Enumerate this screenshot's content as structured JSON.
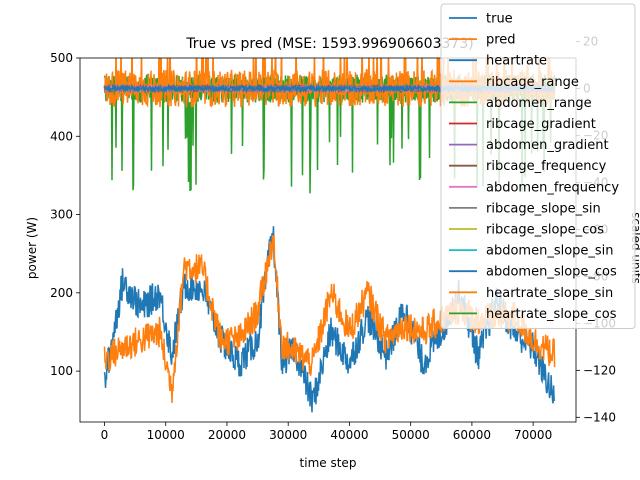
{
  "chart_data": {
    "type": "line",
    "title": "True vs pred (MSE: 1593.996906603373)",
    "xlabel": "time step",
    "ylabel_left": "power (W)",
    "ylabel_right": "scaled units",
    "xlim": [
      -4000,
      77000
    ],
    "ylim_left": [
      35,
      500
    ],
    "ylim_right": [
      -142,
      13
    ],
    "x_ticks": [
      0,
      10000,
      20000,
      30000,
      40000,
      50000,
      60000,
      70000
    ],
    "x_tick_labels": [
      "0",
      "10000",
      "20000",
      "30000",
      "40000",
      "50000",
      "60000",
      "70000"
    ],
    "y_left_ticks": [
      100,
      200,
      300,
      400,
      500
    ],
    "y_left_tick_labels": [
      "100",
      "200",
      "300",
      "400",
      "500"
    ],
    "y_right_ticks": [
      -140,
      -120,
      -100,
      -80,
      -60,
      -40,
      -20,
      0,
      20
    ],
    "y_right_tick_labels": [
      "−140",
      "−120",
      "−100",
      "−80",
      "−60",
      "−40",
      "−20",
      "0",
      "20"
    ],
    "grid": false,
    "legend_position": "top-right",
    "series": [
      {
        "name": "true",
        "color": "#1f77b4",
        "axis": "left",
        "x": [
          0,
          3000,
          6000,
          9000,
          11000,
          13000,
          16000,
          19000,
          22000,
          25000,
          27500,
          29000,
          31000,
          34000,
          37000,
          40000,
          43000,
          46000,
          49000,
          52000,
          55000,
          58000,
          61000,
          64000,
          67000,
          70000,
          73500
        ],
        "values": [
          85,
          215,
          180,
          200,
          120,
          210,
          205,
          140,
          110,
          140,
          280,
          110,
          130,
          60,
          150,
          110,
          170,
          120,
          180,
          110,
          150,
          200,
          120,
          190,
          150,
          130,
          65
        ]
      },
      {
        "name": "pred",
        "color": "#ff7f0e",
        "axis": "left",
        "x": [
          0,
          3000,
          6000,
          9000,
          11000,
          13000,
          16000,
          19000,
          22000,
          25000,
          27500,
          29000,
          31000,
          34000,
          37000,
          40000,
          43000,
          46000,
          49000,
          52000,
          55000,
          58000,
          61000,
          64000,
          67000,
          70000,
          73500
        ],
        "values": [
          115,
          130,
          140,
          150,
          75,
          235,
          230,
          140,
          140,
          175,
          270,
          135,
          125,
          110,
          200,
          150,
          200,
          140,
          160,
          150,
          165,
          180,
          165,
          170,
          170,
          140,
          120
        ]
      },
      {
        "name": "heartrate",
        "color": "#1f77b4",
        "axis": "right",
        "base": 0,
        "spread": 1
      },
      {
        "name": "ribcage_range",
        "color": "#ff7f0e",
        "axis": "right",
        "base": 0,
        "spread": 8
      },
      {
        "name": "abdomen_range",
        "color": "#2ca02c",
        "axis": "right",
        "base": 0,
        "spread": 6
      },
      {
        "name": "ribcage_gradient",
        "color": "#d62728",
        "axis": "right",
        "base": 0,
        "spread": 1
      },
      {
        "name": "abdomen_gradient",
        "color": "#9467bd",
        "axis": "right",
        "base": 0,
        "spread": 1
      },
      {
        "name": "ribcage_frequency",
        "color": "#8c564b",
        "axis": "right",
        "base": 0,
        "spread": 1
      },
      {
        "name": "abdomen_frequency",
        "color": "#e377c2",
        "axis": "right",
        "base": 0,
        "spread": 1
      },
      {
        "name": "ribcage_slope_sin",
        "color": "#7f7f7f",
        "axis": "right",
        "base": 0,
        "spread": 1
      },
      {
        "name": "ribcage_slope_cos",
        "color": "#bcbd22",
        "axis": "right",
        "base": 0,
        "spread": 1
      },
      {
        "name": "abdomen_slope_sin",
        "color": "#17becf",
        "axis": "right",
        "base": 0,
        "spread": 1
      },
      {
        "name": "abdomen_slope_cos",
        "color": "#1f77b4",
        "axis": "right",
        "base": 0,
        "spread": 1
      },
      {
        "name": "heartrate_slope_sin",
        "color": "#ff7f0e",
        "axis": "right",
        "base": 0,
        "spread": 2
      },
      {
        "name": "heartrate_slope_cos",
        "color": "#2ca02c",
        "axis": "right",
        "base": 0,
        "spread": 5
      }
    ]
  }
}
